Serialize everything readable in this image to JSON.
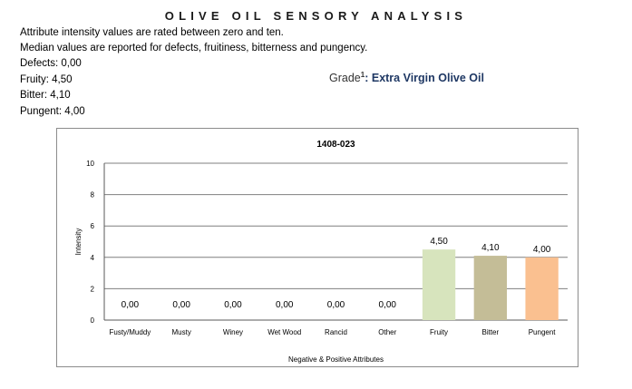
{
  "header": {
    "title": "OLIVE OIL SENSORY ANALYSIS",
    "intro_line1": "Attribute intensity values are rated between zero and ten.",
    "intro_line2": "Median values are reported for defects, fruitiness, bitterness and pungency."
  },
  "summary": {
    "defects": "Defects: 0,00",
    "fruity": "Fruity: 4,50",
    "bitter": "Bitter: 4,10",
    "pungent": "Pungent: 4,00"
  },
  "grade": {
    "label": "Grade",
    "footnote": "1",
    "separator": ":",
    "value": "Extra Virgin Olive Oil"
  },
  "chart_data": {
    "type": "bar",
    "title": "1408-023",
    "xlabel": "Negative & Positive Attributes",
    "ylabel": "Intensity",
    "ylim": [
      0,
      10
    ],
    "yticks": [
      0,
      2,
      4,
      6,
      8,
      10
    ],
    "grid": true,
    "categories": [
      "Fusty/Muddy",
      "Musty",
      "Winey",
      "Wet Wood",
      "Rancid",
      "Other",
      "Fruity",
      "Bitter",
      "Pungent"
    ],
    "values": [
      0,
      0,
      0,
      0,
      0,
      0,
      4.5,
      4.1,
      4.0
    ],
    "data_labels": [
      "0,00",
      "0,00",
      "0,00",
      "0,00",
      "0,00",
      "0,00",
      "4,50",
      "4,10",
      "4,00"
    ],
    "colors": [
      "#d7e4bd",
      "#d7e4bd",
      "#d7e4bd",
      "#d7e4bd",
      "#d7e4bd",
      "#d7e4bd",
      "#d7e4bd",
      "#c4bd97",
      "#fac090"
    ]
  }
}
